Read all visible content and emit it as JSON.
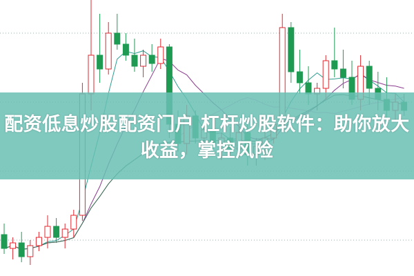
{
  "headline": {
    "line1": "配资低息炒股配资门户 杠杆炒股软件：助你放大",
    "line2": "收益，掌控风险"
  },
  "colors": {
    "up": "#e0262e",
    "down": "#1f9a52",
    "band": "#68c0b4",
    "ma_lines": [
      "#2a9d8f",
      "#8b3b8f",
      "#f0a0d8",
      "#2f6e4e"
    ]
  },
  "candles": [
    [
      15,
      19,
      8,
      10
    ],
    [
      10,
      14,
      6,
      12
    ],
    [
      12,
      16,
      5,
      7
    ],
    [
      7,
      13,
      4,
      11
    ],
    [
      11,
      16,
      9,
      14
    ],
    [
      14,
      22,
      10,
      18
    ],
    [
      18,
      21,
      12,
      14
    ],
    [
      14,
      19,
      10,
      17
    ],
    [
      17,
      24,
      14,
      22
    ],
    [
      22,
      70,
      20,
      66
    ],
    [
      66,
      100,
      60,
      80
    ],
    [
      80,
      95,
      70,
      75
    ],
    [
      75,
      92,
      73,
      88
    ],
    [
      88,
      95,
      82,
      84
    ],
    [
      84,
      88,
      78,
      80
    ],
    [
      80,
      86,
      74,
      76
    ],
    [
      76,
      82,
      72,
      80
    ],
    [
      80,
      84,
      74,
      77
    ],
    [
      77,
      86,
      75,
      83
    ],
    [
      83,
      84,
      50,
      55
    ],
    [
      55,
      60,
      45,
      48
    ],
    [
      48,
      62,
      44,
      58
    ],
    [
      58,
      60,
      48,
      50
    ],
    [
      50,
      56,
      45,
      53
    ],
    [
      53,
      58,
      46,
      48
    ],
    [
      48,
      52,
      42,
      50
    ],
    [
      50,
      54,
      44,
      46
    ],
    [
      46,
      55,
      43,
      52
    ],
    [
      52,
      56,
      40,
      44
    ],
    [
      44,
      50,
      40,
      47
    ],
    [
      47,
      52,
      42,
      50
    ],
    [
      50,
      58,
      48,
      55
    ],
    [
      55,
      95,
      52,
      90
    ],
    [
      90,
      92,
      70,
      74
    ],
    [
      74,
      82,
      66,
      70
    ],
    [
      70,
      76,
      62,
      66
    ],
    [
      66,
      70,
      60,
      68
    ],
    [
      68,
      80,
      64,
      78
    ],
    [
      78,
      90,
      72,
      75
    ],
    [
      75,
      82,
      68,
      72
    ],
    [
      72,
      78,
      62,
      64
    ],
    [
      64,
      80,
      60,
      76
    ],
    [
      76,
      78,
      62,
      68
    ],
    [
      68,
      74,
      60,
      64
    ],
    [
      64,
      72,
      56,
      60
    ],
    [
      60,
      66,
      56,
      63
    ],
    [
      63,
      66,
      58,
      60
    ]
  ]
}
